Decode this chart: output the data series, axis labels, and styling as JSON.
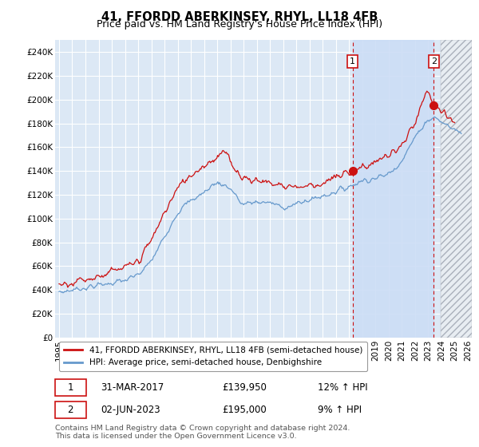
{
  "title": "41, FFORDD ABERKINSEY, RHYL, LL18 4FB",
  "subtitle": "Price paid vs. HM Land Registry's House Price Index (HPI)",
  "ylabel_ticks": [
    "£0",
    "£20K",
    "£40K",
    "£60K",
    "£80K",
    "£100K",
    "£120K",
    "£140K",
    "£160K",
    "£180K",
    "£200K",
    "£220K",
    "£240K"
  ],
  "ytick_values": [
    0,
    20000,
    40000,
    60000,
    80000,
    100000,
    120000,
    140000,
    160000,
    180000,
    200000,
    220000,
    240000
  ],
  "ylim": [
    0,
    250000
  ],
  "hpi_color": "#6699cc",
  "price_color": "#cc1111",
  "dashed_color": "#cc1111",
  "bg_color": "#dce8f5",
  "highlight_color": "#ccddf5",
  "hatch_color": "#c8d0d8",
  "grid_color": "#ffffff",
  "sale1_x": 2017.25,
  "sale1_y": 139950,
  "sale2_x": 2023.42,
  "sale2_y": 195000,
  "highlight_start": 2017.25,
  "highlight_end": 2023.42,
  "hatch_start": 2023.92,
  "hatch_end": 2026.3,
  "legend_label1": "41, FFORDD ABERKINSEY, RHYL, LL18 4FB (semi-detached house)",
  "legend_label2": "HPI: Average price, semi-detached house, Denbighshire",
  "footer": "Contains HM Land Registry data © Crown copyright and database right 2024.\nThis data is licensed under the Open Government Licence v3.0.",
  "title_fontsize": 10.5,
  "subtitle_fontsize": 9,
  "tick_fontsize": 7.5,
  "xlim_left": 1994.7,
  "xlim_right": 2026.3
}
